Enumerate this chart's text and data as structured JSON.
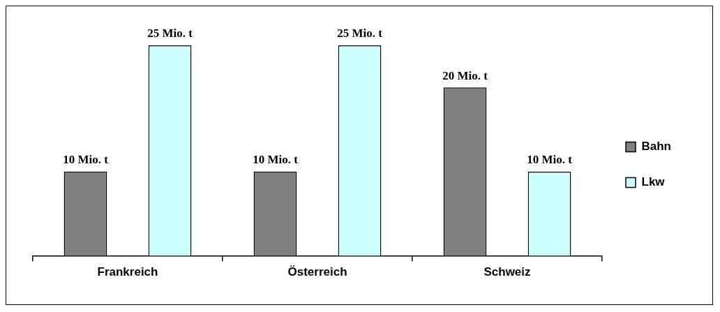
{
  "chart_data": {
    "type": "bar",
    "categories": [
      "Frankreich",
      "Österreich",
      "Schweiz"
    ],
    "series": [
      {
        "name": "Bahn",
        "color": "#808080",
        "values": [
          10,
          10,
          20
        ],
        "value_labels": [
          "10 Mio. t",
          "10 Mio. t",
          "20 Mio. t"
        ]
      },
      {
        "name": "Lkw",
        "color": "#ccffff",
        "values": [
          25,
          25,
          10
        ],
        "value_labels": [
          "25 Mio. t",
          "25 Mio. t",
          "10 Mio. t"
        ]
      }
    ],
    "legend": "right",
    "grid": false
  }
}
